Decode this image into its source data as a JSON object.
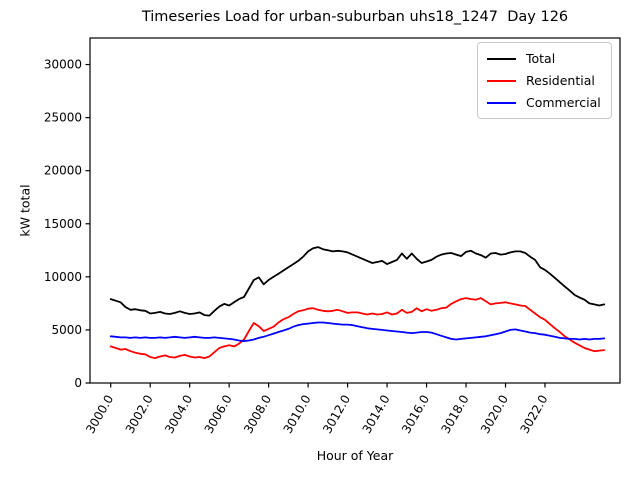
{
  "figure": {
    "background": "#ffffff",
    "axes_color": "#000000",
    "legend_border_color": "#c9c9c9"
  },
  "chart_data": {
    "type": "line",
    "title": "Timeseries Load for urban-suburban uhs18_1247  Day 126",
    "xlabel": "Hour of Year",
    "ylabel": "kW total",
    "xlim": [
      2998.95,
      3025.8
    ],
    "ylim": [
      0,
      32500
    ],
    "grid": false,
    "legend_position": "upper right",
    "xticks": {
      "values": [
        3000,
        3002,
        3004,
        3006,
        3008,
        3010,
        3012,
        3014,
        3016,
        3018,
        3020,
        3022
      ],
      "labels": [
        "3000.0",
        "3002.0",
        "3004.0",
        "3006.0",
        "3008.0",
        "3010.0",
        "3012.0",
        "3014.0",
        "3016.0",
        "3018.0",
        "3020.0",
        "3022.0"
      ],
      "rotation_deg": -60
    },
    "yticks": {
      "values": [
        0,
        5000,
        10000,
        15000,
        20000,
        25000,
        30000
      ],
      "labels": [
        "0",
        "5000",
        "10000",
        "15000",
        "20000",
        "25000",
        "30000"
      ]
    },
    "x": [
      3000.0,
      3000.25,
      3000.5,
      3000.75,
      3001.0,
      3001.25,
      3001.5,
      3001.75,
      3002.0,
      3002.25,
      3002.5,
      3002.75,
      3003.0,
      3003.25,
      3003.5,
      3003.75,
      3004.0,
      3004.25,
      3004.5,
      3004.75,
      3005.0,
      3005.25,
      3005.5,
      3005.75,
      3006.0,
      3006.25,
      3006.5,
      3006.75,
      3007.0,
      3007.25,
      3007.5,
      3007.75,
      3008.0,
      3008.25,
      3008.5,
      3008.75,
      3009.0,
      3009.25,
      3009.5,
      3009.75,
      3010.0,
      3010.25,
      3010.5,
      3010.75,
      3011.0,
      3011.25,
      3011.5,
      3011.75,
      3012.0,
      3012.25,
      3012.5,
      3012.75,
      3013.0,
      3013.25,
      3013.5,
      3013.75,
      3014.0,
      3014.25,
      3014.5,
      3014.75,
      3015.0,
      3015.25,
      3015.5,
      3015.75,
      3016.0,
      3016.25,
      3016.5,
      3016.75,
      3017.0,
      3017.25,
      3017.5,
      3017.75,
      3018.0,
      3018.25,
      3018.5,
      3018.75,
      3019.0,
      3019.25,
      3019.5,
      3019.75,
      3020.0,
      3020.25,
      3020.5,
      3020.75,
      3021.0,
      3021.25,
      3021.5,
      3021.75,
      3022.0,
      3022.25,
      3022.5,
      3022.75,
      3023.0,
      3023.25,
      3023.5,
      3023.75,
      3024.0,
      3024.25,
      3024.5,
      3024.75,
      3025.0
    ],
    "series": [
      {
        "name": "Total",
        "color": "#000000",
        "values": [
          7900,
          7750,
          7600,
          7150,
          6900,
          6950,
          6850,
          6800,
          6550,
          6600,
          6700,
          6550,
          6500,
          6600,
          6750,
          6600,
          6500,
          6550,
          6650,
          6400,
          6350,
          6800,
          7200,
          7450,
          7300,
          7600,
          7900,
          8100,
          8900,
          9700,
          9950,
          9300,
          9700,
          10000,
          10300,
          10600,
          10900,
          11200,
          11500,
          11900,
          12400,
          12700,
          12800,
          12600,
          12500,
          12400,
          12450,
          12400,
          12300,
          12100,
          11900,
          11700,
          11500,
          11300,
          11400,
          11500,
          11200,
          11400,
          11600,
          12200,
          11700,
          12200,
          11700,
          11300,
          11450,
          11600,
          11900,
          12100,
          12200,
          12250,
          12100,
          11950,
          12350,
          12450,
          12200,
          12050,
          11800,
          12200,
          12250,
          12100,
          12150,
          12300,
          12400,
          12400,
          12250,
          11900,
          11600,
          10900,
          10650,
          10300,
          9900,
          9500,
          9100,
          8700,
          8300,
          8050,
          7850,
          7500,
          7400,
          7300,
          7400
        ]
      },
      {
        "name": "Residential",
        "color": "#ff0000",
        "values": [
          3450,
          3300,
          3150,
          3200,
          3000,
          2850,
          2750,
          2700,
          2450,
          2350,
          2500,
          2600,
          2450,
          2400,
          2550,
          2650,
          2500,
          2400,
          2450,
          2350,
          2500,
          2900,
          3300,
          3450,
          3550,
          3450,
          3700,
          4100,
          4900,
          5650,
          5350,
          4900,
          5100,
          5300,
          5700,
          6000,
          6200,
          6500,
          6750,
          6850,
          7000,
          7050,
          6900,
          6800,
          6750,
          6800,
          6900,
          6750,
          6600,
          6650,
          6650,
          6550,
          6450,
          6550,
          6450,
          6500,
          6650,
          6450,
          6550,
          6900,
          6600,
          6700,
          7050,
          6750,
          6950,
          6800,
          6900,
          7050,
          7100,
          7450,
          7700,
          7900,
          8000,
          7900,
          7850,
          8000,
          7700,
          7400,
          7500,
          7550,
          7600,
          7500,
          7400,
          7300,
          7250,
          6900,
          6550,
          6200,
          5950,
          5550,
          5150,
          4800,
          4400,
          4100,
          3800,
          3550,
          3300,
          3150,
          3000,
          3050,
          3100
        ]
      },
      {
        "name": "Commercial",
        "color": "#0000ff",
        "values": [
          4400,
          4350,
          4300,
          4300,
          4250,
          4300,
          4250,
          4300,
          4250,
          4250,
          4300,
          4250,
          4300,
          4350,
          4300,
          4250,
          4300,
          4350,
          4300,
          4250,
          4250,
          4300,
          4250,
          4200,
          4150,
          4100,
          4000,
          3950,
          4000,
          4100,
          4250,
          4350,
          4500,
          4650,
          4800,
          4950,
          5100,
          5300,
          5450,
          5550,
          5600,
          5650,
          5700,
          5700,
          5650,
          5600,
          5550,
          5500,
          5500,
          5450,
          5350,
          5250,
          5150,
          5100,
          5050,
          5000,
          4950,
          4900,
          4850,
          4800,
          4750,
          4700,
          4750,
          4800,
          4800,
          4750,
          4600,
          4450,
          4300,
          4150,
          4100,
          4150,
          4200,
          4250,
          4300,
          4350,
          4400,
          4500,
          4600,
          4700,
          4850,
          5000,
          5050,
          4950,
          4850,
          4750,
          4700,
          4600,
          4550,
          4450,
          4350,
          4250,
          4200,
          4150,
          4150,
          4100,
          4150,
          4100,
          4150,
          4150,
          4200
        ]
      }
    ]
  }
}
